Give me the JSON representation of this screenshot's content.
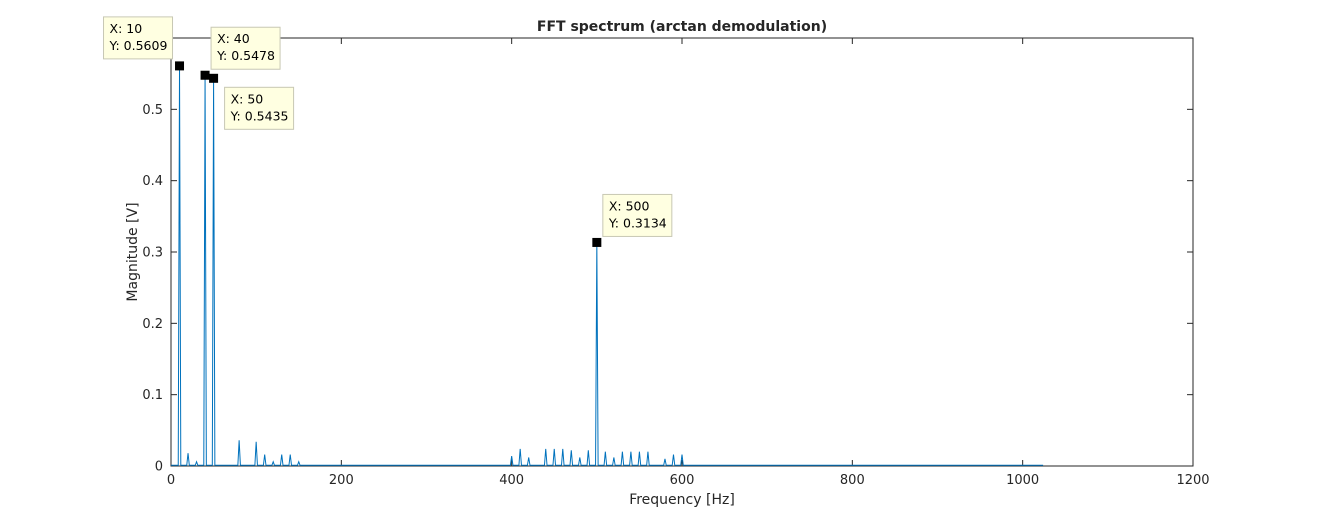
{
  "chart_data": {
    "type": "line",
    "title": "FFT spectrum (arctan demodulation)",
    "xlabel": "Frequency [Hz]",
    "ylabel": "Magnitude [V]",
    "xlim": [
      0,
      1200
    ],
    "ylim": [
      0,
      0.6
    ],
    "xticks": [
      0,
      200,
      400,
      600,
      800,
      1000,
      1200
    ],
    "yticks": [
      0,
      0.1,
      0.2,
      0.3,
      0.4,
      0.5
    ],
    "ytick_labels": [
      "0",
      "0.1",
      "0.2",
      "0.3",
      "0.4",
      "0.5"
    ],
    "grid": false,
    "line_color": "#0072bd",
    "series": [
      {
        "peaks": [
          {
            "x": 10,
            "y": 0.5609
          },
          {
            "x": 20,
            "y": 0.018
          },
          {
            "x": 30,
            "y": 0.006
          },
          {
            "x": 40,
            "y": 0.5478
          },
          {
            "x": 50,
            "y": 0.5435
          },
          {
            "x": 80,
            "y": 0.036
          },
          {
            "x": 100,
            "y": 0.034
          },
          {
            "x": 110,
            "y": 0.016
          },
          {
            "x": 120,
            "y": 0.006
          },
          {
            "x": 130,
            "y": 0.016
          },
          {
            "x": 140,
            "y": 0.016
          },
          {
            "x": 150,
            "y": 0.006
          },
          {
            "x": 400,
            "y": 0.014
          },
          {
            "x": 410,
            "y": 0.024
          },
          {
            "x": 420,
            "y": 0.012
          },
          {
            "x": 440,
            "y": 0.024
          },
          {
            "x": 450,
            "y": 0.024
          },
          {
            "x": 460,
            "y": 0.024
          },
          {
            "x": 470,
            "y": 0.022
          },
          {
            "x": 480,
            "y": 0.012
          },
          {
            "x": 490,
            "y": 0.022
          },
          {
            "x": 500,
            "y": 0.3134
          },
          {
            "x": 510,
            "y": 0.02
          },
          {
            "x": 520,
            "y": 0.012
          },
          {
            "x": 530,
            "y": 0.02
          },
          {
            "x": 540,
            "y": 0.02
          },
          {
            "x": 550,
            "y": 0.02
          },
          {
            "x": 560,
            "y": 0.02
          },
          {
            "x": 580,
            "y": 0.01
          },
          {
            "x": 590,
            "y": 0.016
          },
          {
            "x": 600,
            "y": 0.016
          }
        ],
        "x_end": 1024
      }
    ],
    "datatips": [
      {
        "x": 10,
        "y": 0.5609,
        "x_text": "X: 10",
        "y_text": "Y: 0.5609",
        "placement": "up-left"
      },
      {
        "x": 40,
        "y": 0.5478,
        "x_text": "X: 40",
        "y_text": "Y: 0.5478",
        "placement": "up-right"
      },
      {
        "x": 50,
        "y": 0.5435,
        "x_text": "X: 50",
        "y_text": "Y: 0.5435",
        "placement": "down-right"
      },
      {
        "x": 500,
        "y": 0.3134,
        "x_text": "X: 500",
        "y_text": "Y: 0.3134",
        "placement": "up-right"
      }
    ],
    "datatip_background": "#ffffe1"
  }
}
